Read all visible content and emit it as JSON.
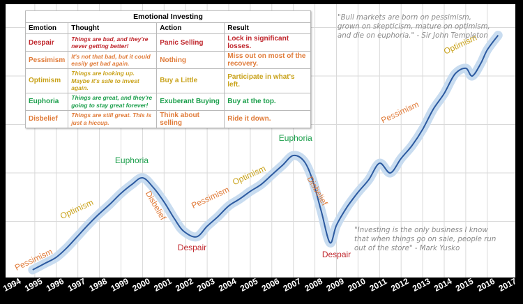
{
  "table": {
    "title": "Emotional Investing",
    "headers": [
      "Emotion",
      "Thought",
      "Action",
      "Result"
    ],
    "rows": [
      {
        "emotion": "Despair",
        "thought": "Things are bad, and they're never getting better!",
        "action": "Panic Selling",
        "result": "Lock in significant losses.",
        "color": "#c0272d"
      },
      {
        "emotion": "Pessimism",
        "thought": "It's not that bad, but it could easily get bad again.",
        "action": "Nothing",
        "result": "Miss out on most of the recovery.",
        "color": "#e07b39"
      },
      {
        "emotion": "Optimism",
        "thought": "Things are looking up. Maybe it's safe to invest again.",
        "action": "Buy a Little",
        "result": "Participate in what's left.",
        "color": "#c9a21a"
      },
      {
        "emotion": "Euphoria",
        "thought": "Things are great, and they're going to stay great forever!",
        "action": "Exuberant Buying",
        "result": "Buy at the top.",
        "color": "#1a9e4a"
      },
      {
        "emotion": "Disbelief",
        "thought": "Things are still great. This is just a hiccup.",
        "action": "Think about selling",
        "result": "Ride it down.",
        "color": "#e07b39"
      }
    ]
  },
  "quotes": {
    "templeton": "\"Bull markets are born on pessimism, grown on skepticism, mature on optimism, and die on euphoria.\" - Sir John Templeton",
    "yusko": "\"Investing is the only business I know that when things go on sale, people run out of the store\" - Mark Yusko"
  },
  "colors": {
    "line": "#2c5aa0",
    "band": "#c8dcf0",
    "grid": "#d9d9d9",
    "pessimism": "#e07b39",
    "optimism": "#c9a21a",
    "euphoria": "#1a9e4a",
    "despair": "#c0272d",
    "disbelief": "#e07b39",
    "year_labels": "#ffffff"
  },
  "chart_data": {
    "type": "line",
    "xlim": [
      1994,
      2017
    ],
    "x_ticks": [
      "1994",
      "1995",
      "1996",
      "1997",
      "1998",
      "1999",
      "2000",
      "2001",
      "2002",
      "2003",
      "2004",
      "2005",
      "2006",
      "2007",
      "2008",
      "2009",
      "2010",
      "2011",
      "2012",
      "2013",
      "2014",
      "2015",
      "2016",
      "2017"
    ],
    "grid": true,
    "series": [
      {
        "x": [
          1994.9,
          1995.5,
          1996.0,
          1996.5,
          1997.0,
          1997.5,
          1998.0,
          1998.5,
          1999.0,
          1999.5,
          2000.0,
          2000.5,
          2001.0,
          2001.5,
          2001.9,
          2002.5,
          2003.0,
          2003.5,
          2004.0,
          2004.5,
          2005.0,
          2005.5,
          2006.0,
          2006.5,
          2007.0,
          2007.5,
          2007.9,
          2008.3,
          2008.7,
          2009.0,
          2009.5,
          2010.0,
          2010.5,
          2011.0,
          2011.5,
          2012.0,
          2012.5,
          2013.0,
          2013.5,
          2014.0,
          2014.5,
          2015.0,
          2015.3,
          2015.7,
          2016.0,
          2016.5
        ],
        "values": [
          0.0,
          0.07,
          0.13,
          0.23,
          0.35,
          0.47,
          0.58,
          0.68,
          0.79,
          0.88,
          0.95,
          0.85,
          0.7,
          0.52,
          0.4,
          0.34,
          0.45,
          0.55,
          0.66,
          0.73,
          0.81,
          0.88,
          0.98,
          1.08,
          1.18,
          1.12,
          0.92,
          0.6,
          0.28,
          0.46,
          0.65,
          0.8,
          0.93,
          1.1,
          1.0,
          1.15,
          1.28,
          1.45,
          1.66,
          1.82,
          2.02,
          2.08,
          2.0,
          2.13,
          2.27,
          2.42
        ]
      }
    ],
    "annotations": [
      {
        "text": "Pessimism",
        "x": 1995.0,
        "y": 0.08
      },
      {
        "text": "Optimism",
        "x": 1997.0,
        "y": 0.6
      },
      {
        "text": "Euphoria",
        "x": 1999.5,
        "y": 1.1
      },
      {
        "text": "Disbelief",
        "x": 2000.5,
        "y": 0.65
      },
      {
        "text": "Despair",
        "x": 2002.3,
        "y": 0.2
      },
      {
        "text": "Pessimism",
        "x": 2003.2,
        "y": 0.72
      },
      {
        "text": "Optimism",
        "x": 2005.0,
        "y": 0.95
      },
      {
        "text": "Euphoria",
        "x": 2007.1,
        "y": 1.33
      },
      {
        "text": "Disbelief",
        "x": 2008.0,
        "y": 0.8
      },
      {
        "text": "Despair",
        "x": 2009.0,
        "y": 0.13
      },
      {
        "text": "Pessimism",
        "x": 2012.0,
        "y": 1.6
      },
      {
        "text": "Optimism",
        "x": 2014.8,
        "y": 2.3
      }
    ]
  }
}
